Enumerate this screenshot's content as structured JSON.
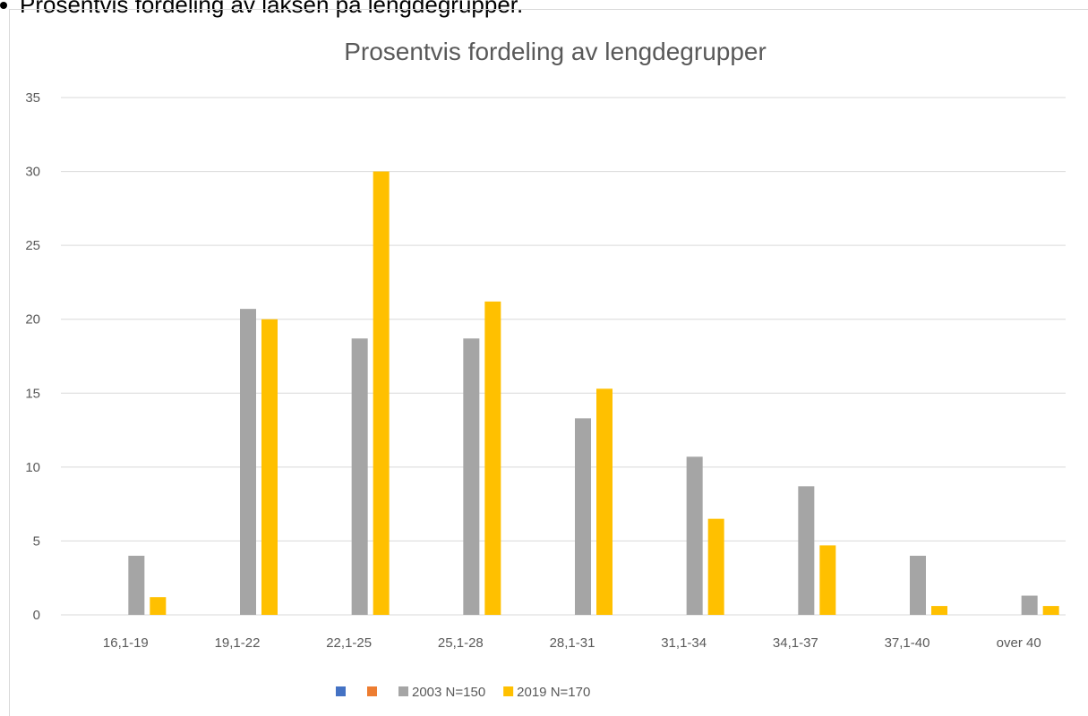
{
  "heading": "Prosentvis fordeling av laksen på lengdegrupper.",
  "chart_data": {
    "type": "bar",
    "title": "Prosentvis fordeling av lengdegrupper",
    "categories": [
      "16,1-19",
      "19,1-22",
      "22,1-25",
      "25,1-28",
      "28,1-31",
      "31,1-34",
      "34,1-37",
      "37,1-40",
      "over 40"
    ],
    "series": [
      {
        "color": "#4472c4",
        "values": [
          null,
          null,
          null,
          null,
          null,
          null,
          null,
          null,
          null
        ]
      },
      {
        "color": "#ed7d31",
        "values": [
          null,
          null,
          null,
          null,
          null,
          null,
          null,
          null,
          null
        ]
      },
      {
        "name": "2003 N=150",
        "color": "#a5a5a5",
        "values": [
          4,
          20.7,
          18.7,
          18.7,
          13.3,
          10.7,
          8.7,
          4,
          1.3
        ]
      },
      {
        "name": "2019 N=170",
        "color": "#ffc000",
        "values": [
          1.2,
          20,
          30,
          21.2,
          15.3,
          6.5,
          4.7,
          0.6,
          0.6
        ]
      }
    ],
    "ylim": [
      0,
      35
    ],
    "yticks": [
      0,
      5,
      10,
      15,
      20,
      25,
      30,
      35
    ],
    "grid": true,
    "legend": "bottom"
  }
}
